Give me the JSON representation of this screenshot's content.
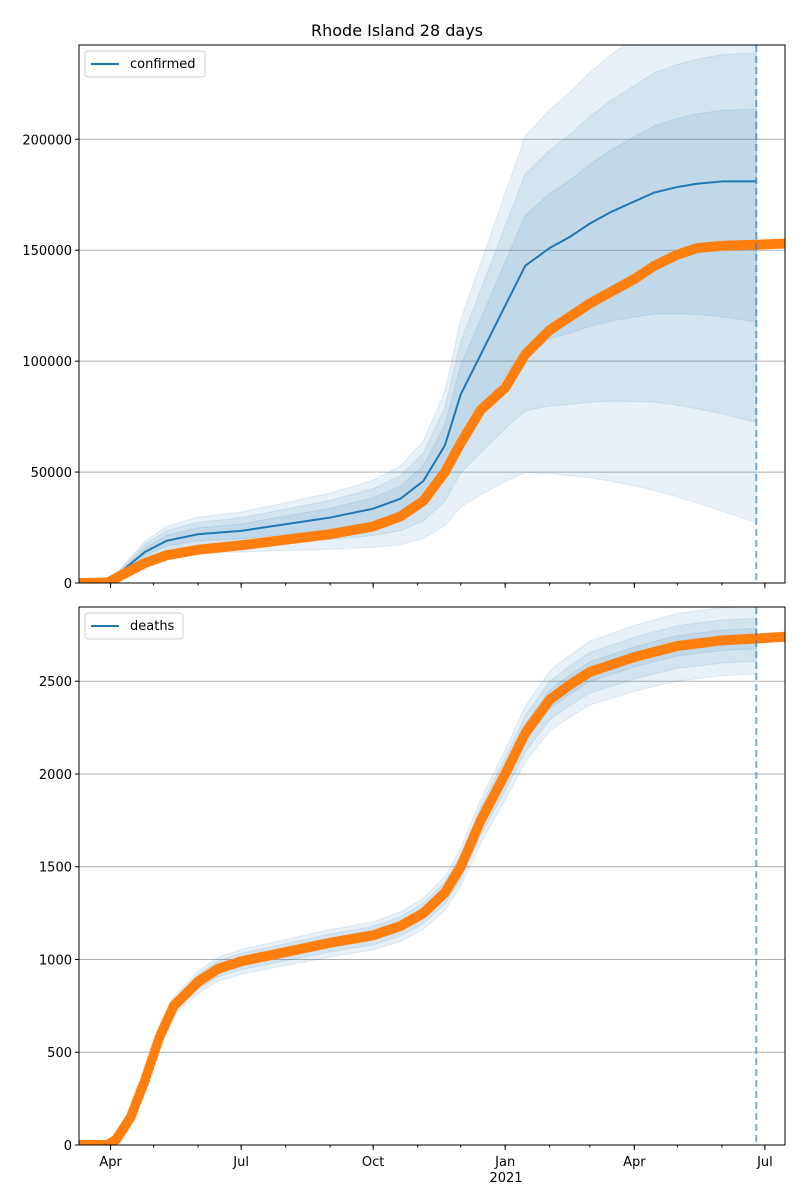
{
  "title": "Rhode Island 28 days",
  "colors": {
    "model": "#1f77b4",
    "observed": "#ff7f0e",
    "grid": "#b0b0b0",
    "axis": "#000000"
  },
  "x_axis": {
    "range": [
      "2020-03-10",
      "2021-07-15"
    ],
    "ticks": [
      {
        "date": "2020-04-01",
        "label": "Apr"
      },
      {
        "date": "2020-07-01",
        "label": "Jul"
      },
      {
        "date": "2020-10-01",
        "label": "Oct"
      },
      {
        "date": "2021-01-01",
        "label": "Jan"
      },
      {
        "date": "2021-04-01",
        "label": "Apr"
      },
      {
        "date": "2021-07-01",
        "label": "Jul"
      }
    ],
    "year_label": "2021",
    "forecast_line_date": "2021-06-25"
  },
  "chart_data": [
    {
      "type": "line",
      "legend": "confirmed",
      "legend_position": "top-left",
      "ylim": [
        0,
        242500
      ],
      "yticks": [
        0,
        50000,
        100000,
        150000,
        200000
      ],
      "grid": true,
      "model": [
        [
          "2020-03-10",
          0
        ],
        [
          "2020-03-30",
          0
        ],
        [
          "2020-04-10",
          6000
        ],
        [
          "2020-04-25",
          14000
        ],
        [
          "2020-05-10",
          19000
        ],
        [
          "2020-06-01",
          22000
        ],
        [
          "2020-07-01",
          23500
        ],
        [
          "2020-08-01",
          26500
        ],
        [
          "2020-09-01",
          29500
        ],
        [
          "2020-10-01",
          33500
        ],
        [
          "2020-10-20",
          38000
        ],
        [
          "2020-11-05",
          46000
        ],
        [
          "2020-11-20",
          62000
        ],
        [
          "2020-12-01",
          85000
        ],
        [
          "2020-12-15",
          103000
        ],
        [
          "2021-01-01",
          125000
        ],
        [
          "2021-01-15",
          143000
        ],
        [
          "2021-02-01",
          151000
        ],
        [
          "2021-02-15",
          156000
        ],
        [
          "2021-03-01",
          162000
        ],
        [
          "2021-03-15",
          167000
        ],
        [
          "2021-04-01",
          172000
        ],
        [
          "2021-04-15",
          176000
        ],
        [
          "2021-05-01",
          178500
        ],
        [
          "2021-05-15",
          180000
        ],
        [
          "2021-06-01",
          181000
        ],
        [
          "2021-06-25",
          181000
        ]
      ],
      "band_offsets": [
        [
          0.09,
          0.35,
          0.18,
          0.6,
          0.27,
          0.85
        ],
        [
          0.12,
          0.18,
          0.23,
          0.32,
          0.33,
          0.45
        ]
      ],
      "observed": [
        [
          "2020-03-10",
          0
        ],
        [
          "2020-03-30",
          200
        ],
        [
          "2020-04-10",
          4000
        ],
        [
          "2020-04-25",
          9000
        ],
        [
          "2020-05-10",
          12500
        ],
        [
          "2020-06-01",
          15000
        ],
        [
          "2020-07-01",
          17000
        ],
        [
          "2020-08-01",
          19500
        ],
        [
          "2020-09-01",
          22000
        ],
        [
          "2020-10-01",
          25500
        ],
        [
          "2020-10-20",
          30000
        ],
        [
          "2020-11-05",
          37000
        ],
        [
          "2020-11-20",
          50000
        ],
        [
          "2020-12-01",
          63000
        ],
        [
          "2020-12-15",
          78000
        ],
        [
          "2021-01-01",
          88000
        ],
        [
          "2021-01-15",
          103000
        ],
        [
          "2021-02-01",
          114000
        ],
        [
          "2021-02-15",
          120000
        ],
        [
          "2021-03-01",
          126000
        ],
        [
          "2021-03-15",
          131000
        ],
        [
          "2021-04-01",
          137000
        ],
        [
          "2021-04-15",
          143000
        ],
        [
          "2021-05-01",
          148000
        ],
        [
          "2021-05-15",
          151000
        ],
        [
          "2021-06-01",
          152000
        ],
        [
          "2021-06-25",
          152500
        ],
        [
          "2021-07-15",
          153000
        ]
      ]
    },
    {
      "type": "line",
      "legend": "deaths",
      "legend_position": "top-left",
      "ylim": [
        0,
        2900
      ],
      "yticks": [
        0,
        500,
        1000,
        1500,
        2000,
        2500
      ],
      "grid": true,
      "model": [
        [
          "2020-03-10",
          0
        ],
        [
          "2020-03-30",
          0
        ],
        [
          "2020-04-05",
          30
        ],
        [
          "2020-04-15",
          150
        ],
        [
          "2020-04-25",
          350
        ],
        [
          "2020-05-05",
          580
        ],
        [
          "2020-05-15",
          750
        ],
        [
          "2020-06-01",
          880
        ],
        [
          "2020-06-15",
          950
        ],
        [
          "2020-07-01",
          990
        ],
        [
          "2020-08-01",
          1040
        ],
        [
          "2020-09-01",
          1090
        ],
        [
          "2020-10-01",
          1130
        ],
        [
          "2020-10-20",
          1180
        ],
        [
          "2020-11-05",
          1250
        ],
        [
          "2020-11-20",
          1360
        ],
        [
          "2020-12-01",
          1500
        ],
        [
          "2020-12-15",
          1750
        ],
        [
          "2021-01-01",
          2000
        ],
        [
          "2021-01-15",
          2220
        ],
        [
          "2021-02-01",
          2400
        ],
        [
          "2021-02-15",
          2480
        ],
        [
          "2021-03-01",
          2550
        ],
        [
          "2021-04-01",
          2630
        ],
        [
          "2021-05-01",
          2690
        ],
        [
          "2021-06-01",
          2720
        ],
        [
          "2021-06-25",
          2730
        ]
      ],
      "band_offsets": [
        [
          0.02,
          0.02,
          0.045,
          0.045,
          0.07,
          0.07
        ],
        [
          0.025,
          0.02,
          0.045,
          0.04,
          0.065,
          0.065
        ]
      ],
      "observed": [
        [
          "2020-03-10",
          0
        ],
        [
          "2020-03-30",
          0
        ],
        [
          "2020-04-05",
          30
        ],
        [
          "2020-04-15",
          150
        ],
        [
          "2020-04-25",
          350
        ],
        [
          "2020-05-05",
          580
        ],
        [
          "2020-05-15",
          750
        ],
        [
          "2020-06-01",
          880
        ],
        [
          "2020-06-15",
          950
        ],
        [
          "2020-07-01",
          990
        ],
        [
          "2020-08-01",
          1040
        ],
        [
          "2020-09-01",
          1090
        ],
        [
          "2020-10-01",
          1130
        ],
        [
          "2020-10-20",
          1180
        ],
        [
          "2020-11-05",
          1250
        ],
        [
          "2020-11-20",
          1360
        ],
        [
          "2020-12-01",
          1500
        ],
        [
          "2020-12-15",
          1750
        ],
        [
          "2021-01-01",
          2000
        ],
        [
          "2021-01-15",
          2220
        ],
        [
          "2021-02-01",
          2400
        ],
        [
          "2021-02-15",
          2480
        ],
        [
          "2021-03-01",
          2550
        ],
        [
          "2021-04-01",
          2630
        ],
        [
          "2021-05-01",
          2690
        ],
        [
          "2021-06-01",
          2720
        ],
        [
          "2021-06-25",
          2730
        ],
        [
          "2021-07-15",
          2740
        ]
      ]
    }
  ]
}
